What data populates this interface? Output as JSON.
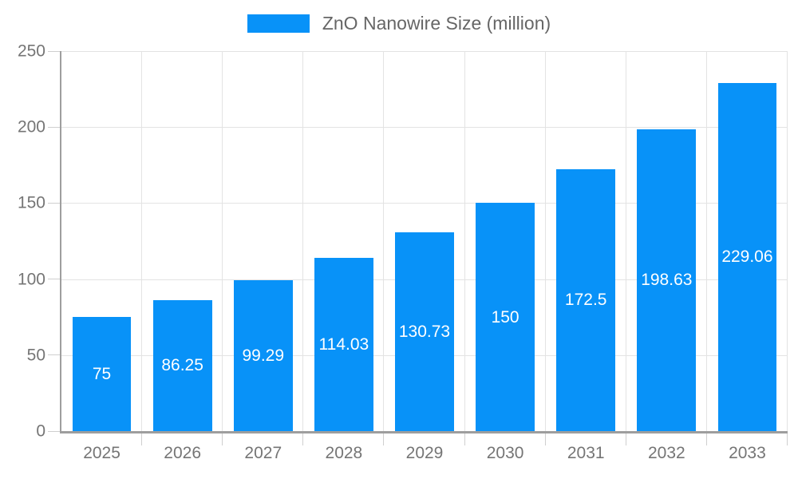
{
  "legend": {
    "label": "ZnO Nanowire Size (million)"
  },
  "chart_data": {
    "type": "bar",
    "title": "ZnO Nanowire Size (million)",
    "categories": [
      "2025",
      "2026",
      "2027",
      "2028",
      "2029",
      "2030",
      "2031",
      "2032",
      "2033"
    ],
    "values": [
      75,
      86.25,
      99.29,
      114.03,
      130.73,
      150,
      172.5,
      198.63,
      229.06
    ],
    "value_labels": [
      "75",
      "86.25",
      "99.29",
      "114.03",
      "130.73",
      "150",
      "172.5",
      "198.63",
      "229.06"
    ],
    "series_name": "ZnO Nanowire Size (million)",
    "xlabel": "",
    "ylabel": "",
    "ylim": [
      0,
      250
    ],
    "yticks": [
      0,
      50,
      100,
      150,
      200,
      250
    ],
    "grid": true,
    "legend_position": "top",
    "value_label_position": "center-inside",
    "colors": {
      "bar": "#0892f8",
      "bar_label": "#ffffff",
      "gridline": "#e3e3e3",
      "axis_line": "#9e9e9e",
      "tick_mark": "#cfcfcf",
      "tick_label": "#757575",
      "legend_text": "#666666",
      "background": "#ffffff"
    }
  }
}
